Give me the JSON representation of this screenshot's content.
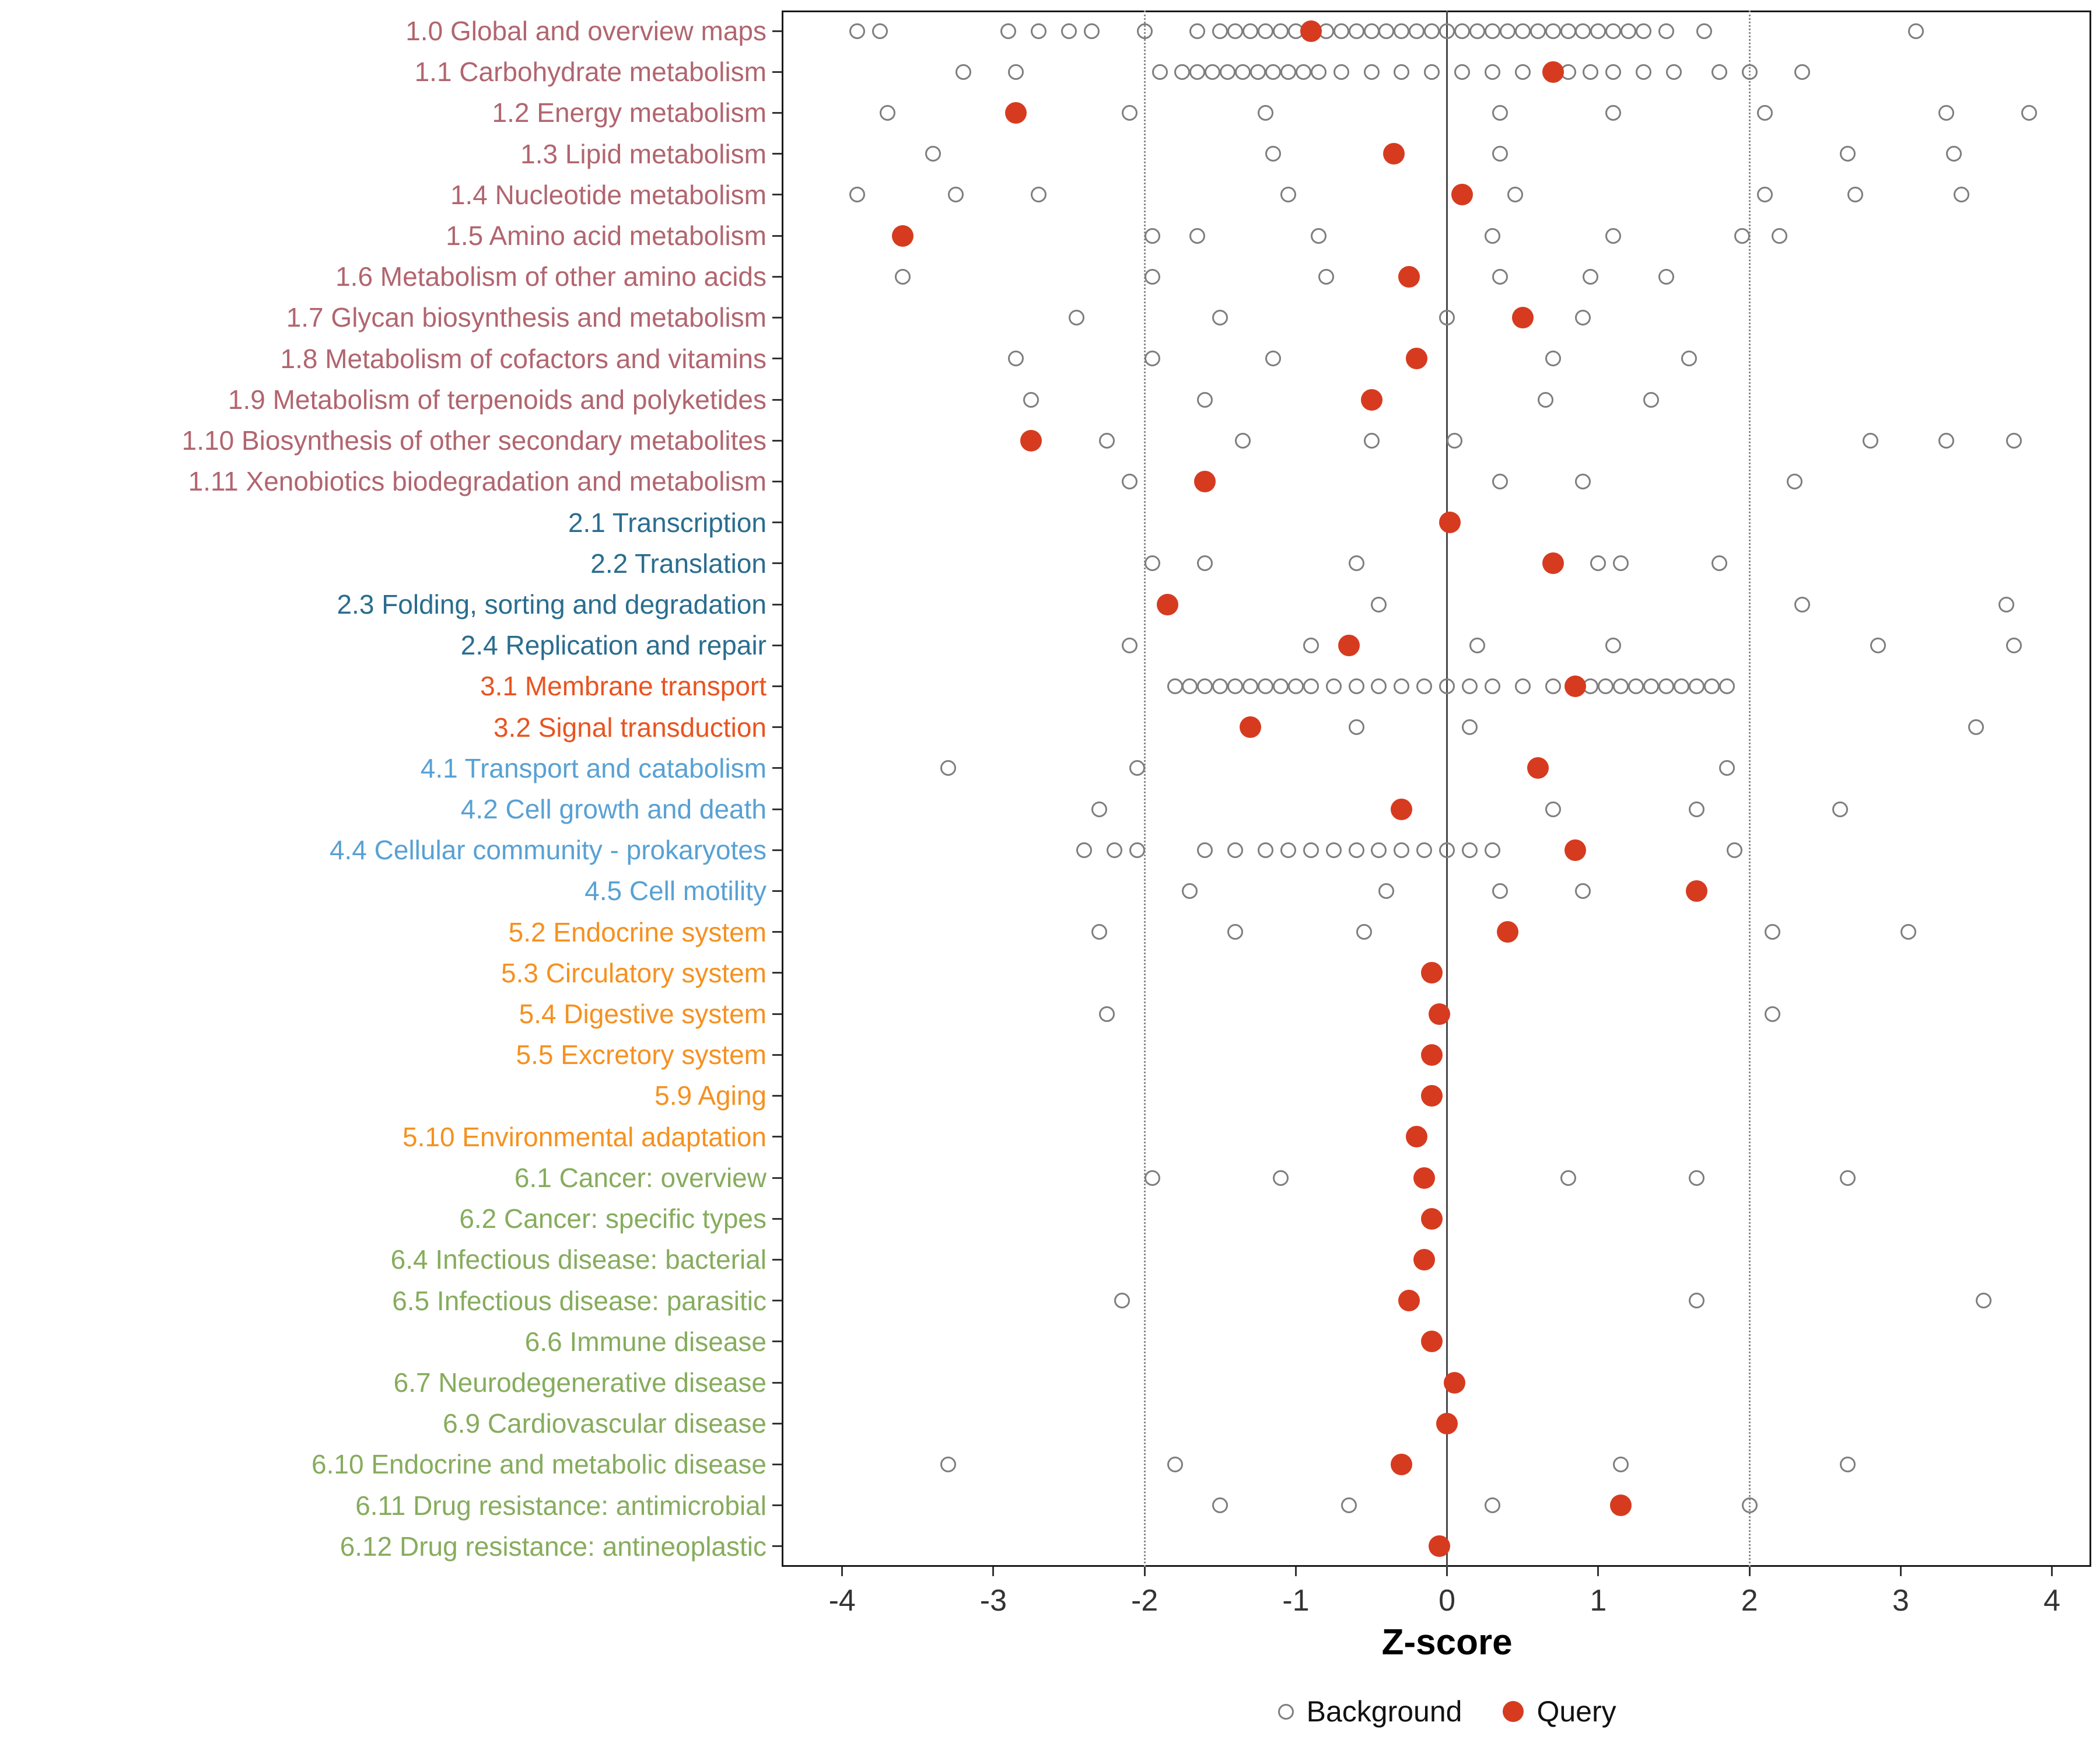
{
  "chart_data": {
    "type": "scatter",
    "title": "",
    "xlabel": "Z-score",
    "xlim": [
      -4.4,
      4.26
    ],
    "x_ticks": [
      -4,
      -3,
      -2,
      -1,
      0,
      1,
      2,
      3,
      4
    ],
    "reference_lines": {
      "solid": [
        0
      ],
      "dotted": [
        -2,
        2
      ]
    },
    "grid": false,
    "legend": {
      "position": "bottom",
      "items": [
        {
          "label": "Background",
          "style": "open-gray-circle"
        },
        {
          "label": "Query",
          "style": "filled-red-dot"
        }
      ]
    },
    "colors": {
      "query": "#d63b1f",
      "background_stroke": "#7e7e7e",
      "group_metabolism": "#b1656f",
      "group_genetic_information_processing": "#2a6d8f",
      "group_environmental_information_processing": "#e95420",
      "group_cellular_processes": "#58a1d4",
      "group_organismal_systems": "#f59120",
      "group_human_diseases": "#86ac5d"
    },
    "categories": [
      {
        "label": "1.0 Global and overview maps",
        "color": "#b1656f",
        "query": -0.9,
        "background": [
          -3.9,
          -3.75,
          -2.9,
          -2.7,
          -2.5,
          -2.35,
          -2.0,
          -1.65,
          -1.5,
          -1.4,
          -1.3,
          -1.2,
          -1.1,
          -1.0,
          -0.8,
          -0.7,
          -0.6,
          -0.5,
          -0.4,
          -0.3,
          -0.2,
          -0.1,
          0.0,
          0.1,
          0.2,
          0.3,
          0.4,
          0.5,
          0.6,
          0.7,
          0.8,
          0.9,
          1.0,
          1.1,
          1.2,
          1.3,
          1.45,
          1.7,
          3.1
        ]
      },
      {
        "label": "1.1 Carbohydrate metabolism",
        "color": "#b1656f",
        "query": 0.7,
        "background": [
          -3.2,
          -2.85,
          -1.9,
          -1.75,
          -1.65,
          -1.55,
          -1.45,
          -1.35,
          -1.25,
          -1.15,
          -1.05,
          -0.95,
          -0.85,
          -0.7,
          -0.5,
          -0.3,
          -0.1,
          0.1,
          0.3,
          0.5,
          0.8,
          0.95,
          1.1,
          1.3,
          1.5,
          1.8,
          2.0,
          2.35
        ]
      },
      {
        "label": "1.2 Energy metabolism",
        "color": "#b1656f",
        "query": -2.85,
        "background": [
          -3.7,
          -2.1,
          -1.2,
          0.35,
          1.1,
          2.1,
          3.3,
          3.85
        ]
      },
      {
        "label": "1.3 Lipid metabolism",
        "color": "#b1656f",
        "query": -0.35,
        "background": [
          -3.4,
          -1.15,
          0.35,
          2.65,
          3.35
        ]
      },
      {
        "label": "1.4 Nucleotide metabolism",
        "color": "#b1656f",
        "query": 0.1,
        "background": [
          -3.9,
          -3.25,
          -2.7,
          -1.05,
          0.45,
          2.1,
          2.7,
          3.4
        ]
      },
      {
        "label": "1.5 Amino acid metabolism",
        "color": "#b1656f",
        "query": -3.6,
        "background": [
          -1.95,
          -1.65,
          -0.85,
          0.3,
          1.1,
          1.95,
          2.2
        ]
      },
      {
        "label": "1.6 Metabolism of other amino acids",
        "color": "#b1656f",
        "query": -0.25,
        "background": [
          -3.6,
          -1.95,
          -0.8,
          0.35,
          0.95,
          1.45
        ]
      },
      {
        "label": "1.7 Glycan biosynthesis and metabolism",
        "color": "#b1656f",
        "query": 0.5,
        "background": [
          -2.45,
          -1.5,
          0.0,
          0.9
        ]
      },
      {
        "label": "1.8 Metabolism of cofactors and vitamins",
        "color": "#b1656f",
        "query": -0.2,
        "background": [
          -2.85,
          -1.95,
          -1.15,
          0.7,
          1.6
        ]
      },
      {
        "label": "1.9 Metabolism of terpenoids and polyketides",
        "color": "#b1656f",
        "query": -0.5,
        "background": [
          -2.75,
          -1.6,
          0.65,
          1.35
        ]
      },
      {
        "label": "1.10 Biosynthesis of other secondary metabolites",
        "color": "#b1656f",
        "query": -2.75,
        "background": [
          -2.25,
          -1.35,
          -0.5,
          0.05,
          2.8,
          3.3,
          3.75
        ]
      },
      {
        "label": "1.11 Xenobiotics biodegradation and metabolism",
        "color": "#b1656f",
        "query": -1.6,
        "background": [
          -2.1,
          0.35,
          0.9,
          2.3
        ]
      },
      {
        "label": "2.1 Transcription",
        "color": "#2a6d8f",
        "query": 0.02,
        "background": []
      },
      {
        "label": "2.2 Translation",
        "color": "#2a6d8f",
        "query": 0.7,
        "background": [
          -1.95,
          -1.6,
          -0.6,
          1.0,
          1.15,
          1.8
        ]
      },
      {
        "label": "2.3 Folding, sorting and degradation",
        "color": "#2a6d8f",
        "query": -1.85,
        "background": [
          -0.45,
          2.35,
          3.7
        ]
      },
      {
        "label": "2.4 Replication and repair",
        "color": "#2a6d8f",
        "query": -0.65,
        "background": [
          -2.1,
          -0.9,
          0.2,
          1.1,
          2.85,
          3.75
        ]
      },
      {
        "label": "3.1 Membrane transport",
        "color": "#e95420",
        "query": 0.85,
        "background": [
          -1.8,
          -1.7,
          -1.6,
          -1.5,
          -1.4,
          -1.3,
          -1.2,
          -1.1,
          -1.0,
          -0.9,
          -0.75,
          -0.6,
          -0.45,
          -0.3,
          -0.15,
          0.0,
          0.15,
          0.3,
          0.5,
          0.7,
          0.95,
          1.05,
          1.15,
          1.25,
          1.35,
          1.45,
          1.55,
          1.65,
          1.75,
          1.85
        ]
      },
      {
        "label": "3.2 Signal transduction",
        "color": "#e95420",
        "query": -1.3,
        "background": [
          -0.6,
          0.15,
          3.5
        ]
      },
      {
        "label": "4.1 Transport and catabolism",
        "color": "#58a1d4",
        "query": 0.6,
        "background": [
          -3.3,
          -2.05,
          1.85
        ]
      },
      {
        "label": "4.2 Cell growth and death",
        "color": "#58a1d4",
        "query": -0.3,
        "background": [
          -2.3,
          0.7,
          1.65,
          2.6
        ]
      },
      {
        "label": "4.4 Cellular community - prokaryotes",
        "color": "#58a1d4",
        "query": 0.85,
        "background": [
          -2.4,
          -2.2,
          -2.05,
          -1.6,
          -1.4,
          -1.2,
          -1.05,
          -0.9,
          -0.75,
          -0.6,
          -0.45,
          -0.3,
          -0.15,
          0.0,
          0.15,
          0.3,
          1.9
        ]
      },
      {
        "label": "4.5 Cell motility",
        "color": "#58a1d4",
        "query": 1.65,
        "background": [
          -1.7,
          -0.4,
          0.35,
          0.9
        ]
      },
      {
        "label": "5.2 Endocrine system",
        "color": "#f59120",
        "query": 0.4,
        "background": [
          -2.3,
          -1.4,
          -0.55,
          2.15,
          3.05
        ]
      },
      {
        "label": "5.3 Circulatory system",
        "color": "#f59120",
        "query": -0.1,
        "background": []
      },
      {
        "label": "5.4 Digestive system",
        "color": "#f59120",
        "query": -0.05,
        "background": [
          -2.25,
          2.15
        ]
      },
      {
        "label": "5.5 Excretory system",
        "color": "#f59120",
        "query": -0.1,
        "background": []
      },
      {
        "label": "5.9 Aging",
        "color": "#f59120",
        "query": -0.1,
        "background": []
      },
      {
        "label": "5.10 Environmental adaptation",
        "color": "#f59120",
        "query": -0.2,
        "background": []
      },
      {
        "label": "6.1 Cancer: overview",
        "color": "#86ac5d",
        "query": -0.15,
        "background": [
          -1.95,
          -1.1,
          0.8,
          1.65,
          2.65
        ]
      },
      {
        "label": "6.2 Cancer: specific types",
        "color": "#86ac5d",
        "query": -0.1,
        "background": []
      },
      {
        "label": "6.4 Infectious disease: bacterial",
        "color": "#86ac5d",
        "query": -0.15,
        "background": []
      },
      {
        "label": "6.5 Infectious disease: parasitic",
        "color": "#86ac5d",
        "query": -0.25,
        "background": [
          -2.15,
          1.65,
          3.55
        ]
      },
      {
        "label": "6.6 Immune disease",
        "color": "#86ac5d",
        "query": -0.1,
        "background": []
      },
      {
        "label": "6.7 Neurodegenerative disease",
        "color": "#86ac5d",
        "query": 0.05,
        "background": []
      },
      {
        "label": "6.9 Cardiovascular disease",
        "color": "#86ac5d",
        "query": 0.0,
        "background": []
      },
      {
        "label": "6.10 Endocrine and metabolic disease",
        "color": "#86ac5d",
        "query": -0.3,
        "background": [
          -3.3,
          -1.8,
          1.15,
          2.65
        ]
      },
      {
        "label": "6.11 Drug resistance: antimicrobial",
        "color": "#86ac5d",
        "query": 1.15,
        "background": [
          -1.5,
          -0.65,
          0.3,
          2.0
        ]
      },
      {
        "label": "6.12 Drug resistance: antineoplastic",
        "color": "#86ac5d",
        "query": -0.05,
        "background": []
      }
    ]
  }
}
